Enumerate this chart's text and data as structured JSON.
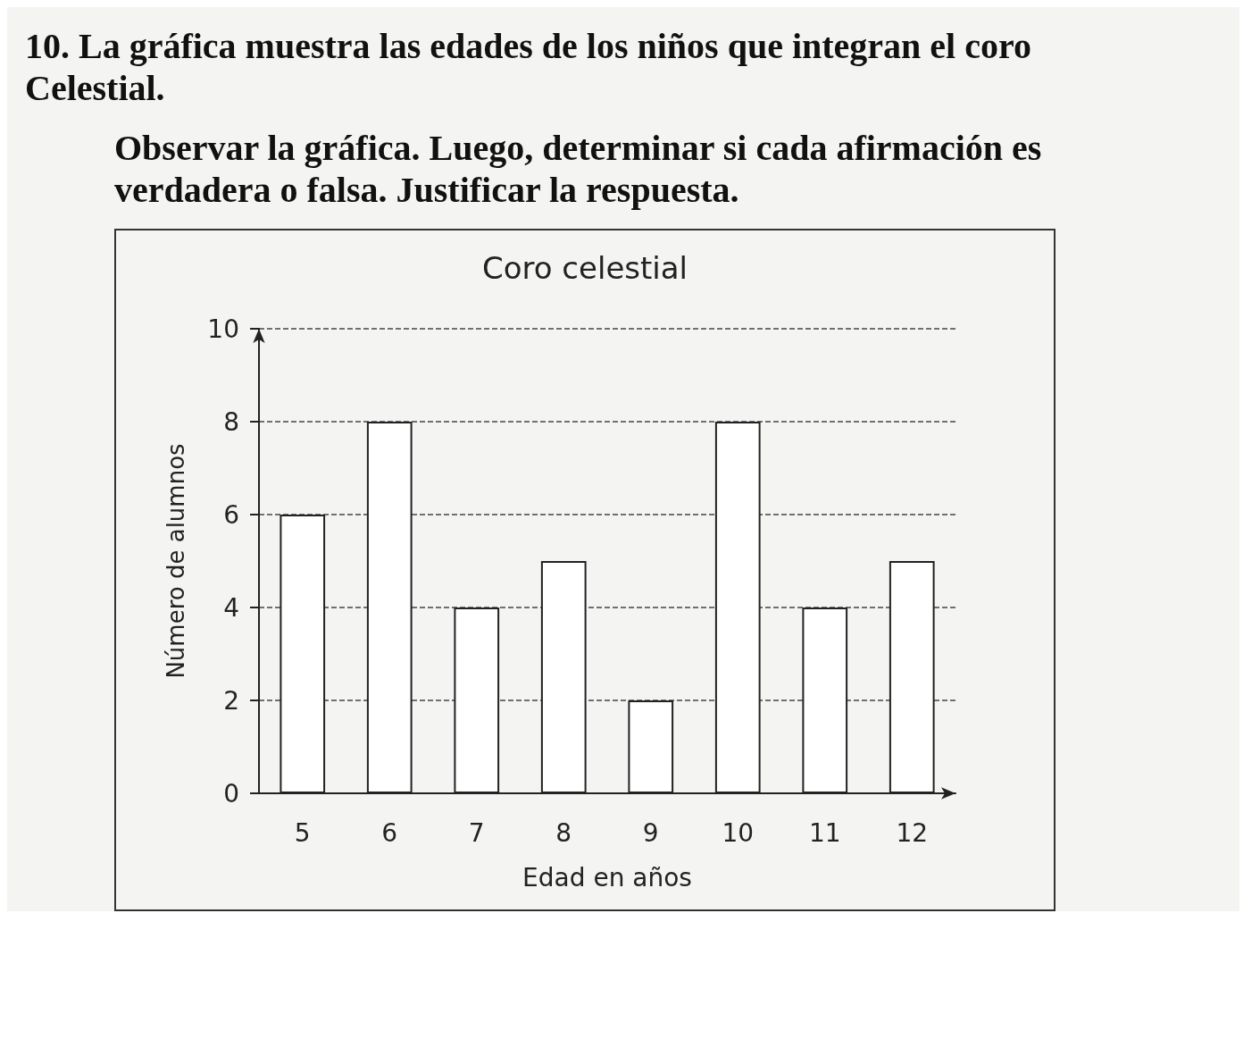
{
  "chart_data": {
    "type": "bar",
    "title": "10. La gráfica muestra las edades de los niños que integran el coro Celestial.",
    "subtitle": "Observar la gráfica. Luego, determinar si cada afirmación es verdadera o falsa. Justificar la respuesta.",
    "annotations": [
      "Coro celestial"
    ],
    "xlabel": "Edad en años",
    "ylabel": "Número de alumnos",
    "categories": [
      "5",
      "6",
      "7",
      "8",
      "9",
      "10",
      "11",
      "12"
    ],
    "values": [
      6,
      8,
      4,
      5,
      2,
      8,
      4,
      5
    ],
    "color": "#ffffff",
    "ylim": [
      0,
      10
    ],
    "yticks": [
      0,
      2,
      4,
      6,
      8,
      10
    ],
    "grid": "y"
  }
}
